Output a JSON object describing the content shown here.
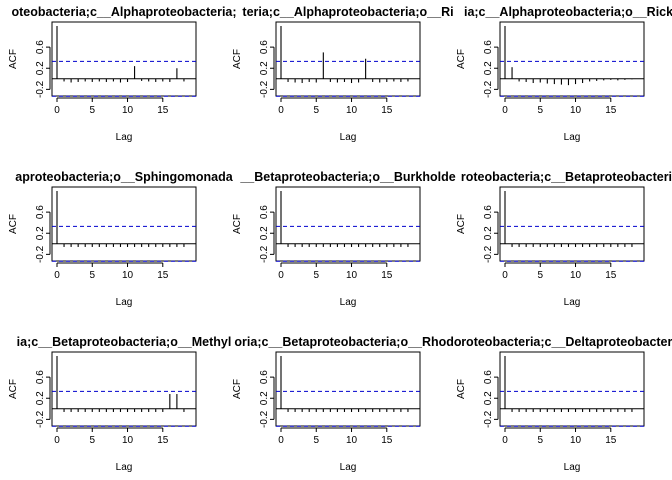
{
  "figure": {
    "background": "#ffffff",
    "ci_color": "#0000cd",
    "bar_color": "#000000",
    "zero_line_color": "#000000"
  },
  "chart_data": [
    {
      "type": "bar",
      "chart_kind": "acf",
      "title": "oteobacteria;c__Alphaproteobacteria;",
      "xlabel": "Lag",
      "ylabel": "ACF",
      "xlim": [
        0,
        19
      ],
      "ylim": [
        -0.25,
        1.0
      ],
      "xticks": [
        "0",
        "5",
        "10",
        "15"
      ],
      "yticks": [
        "-0.2",
        "0.2",
        "0.6"
      ],
      "ci": 0.33,
      "x": [
        0,
        1,
        2,
        3,
        4,
        5,
        6,
        7,
        8,
        9,
        10,
        11,
        12,
        13,
        14,
        15,
        16,
        17,
        18
      ],
      "values": [
        1.0,
        -0.05,
        -0.07,
        -0.06,
        -0.05,
        -0.06,
        -0.05,
        -0.06,
        -0.05,
        -0.07,
        -0.06,
        0.24,
        -0.04,
        -0.05,
        -0.06,
        -0.05,
        -0.06,
        0.2,
        -0.05
      ]
    },
    {
      "type": "bar",
      "chart_kind": "acf",
      "title": "teria;c__Alphaproteobacteria;o__Ri",
      "xlabel": "Lag",
      "ylabel": "ACF",
      "xlim": [
        0,
        19
      ],
      "ylim": [
        -0.25,
        1.0
      ],
      "xticks": [
        "0",
        "5",
        "10",
        "15"
      ],
      "yticks": [
        "-0.2",
        "0.2",
        "0.6"
      ],
      "ci": 0.33,
      "x": [
        0,
        1,
        2,
        3,
        4,
        5,
        6,
        7,
        8,
        9,
        10,
        11,
        12,
        13,
        14,
        15,
        16,
        17,
        18
      ],
      "values": [
        1.0,
        -0.06,
        -0.07,
        -0.08,
        -0.06,
        -0.07,
        0.5,
        -0.06,
        -0.07,
        -0.06,
        -0.08,
        -0.07,
        0.38,
        -0.06,
        -0.07,
        -0.06,
        -0.05,
        -0.06,
        -0.05
      ]
    },
    {
      "type": "bar",
      "chart_kind": "acf",
      "title": "ia;c__Alphaproteobacteria;o__Ricke",
      "xlabel": "Lag",
      "ylabel": "ACF",
      "xlim": [
        0,
        19
      ],
      "ylim": [
        -0.25,
        1.0
      ],
      "xticks": [
        "0",
        "5",
        "10",
        "15"
      ],
      "yticks": [
        "-0.2",
        "0.2",
        "0.6"
      ],
      "ci": 0.33,
      "x": [
        0,
        1,
        2,
        3,
        4,
        5,
        6,
        7,
        8,
        9,
        10,
        11,
        12,
        13,
        14,
        15,
        16,
        17,
        18
      ],
      "values": [
        1.0,
        0.22,
        -0.05,
        -0.06,
        -0.08,
        -0.07,
        -0.09,
        -0.1,
        -0.11,
        -0.12,
        -0.1,
        -0.08,
        -0.05,
        -0.04,
        -0.03,
        -0.02,
        -0.03,
        -0.02,
        -0.01
      ]
    },
    {
      "type": "bar",
      "chart_kind": "acf",
      "title": "aproteobacteria;o__Sphingomonada",
      "xlabel": "Lag",
      "ylabel": "ACF",
      "xlim": [
        0,
        19
      ],
      "ylim": [
        -0.25,
        1.0
      ],
      "xticks": [
        "0",
        "5",
        "10",
        "15"
      ],
      "yticks": [
        "-0.2",
        "0.2",
        "0.6"
      ],
      "ci": 0.33,
      "x": [
        0,
        1,
        2,
        3,
        4,
        5,
        6,
        7,
        8,
        9,
        10,
        11,
        12,
        13,
        14,
        15,
        16,
        17,
        18
      ],
      "values": [
        1.0,
        -0.06,
        -0.06,
        -0.06,
        -0.06,
        -0.06,
        -0.06,
        -0.06,
        -0.06,
        -0.06,
        -0.06,
        -0.06,
        -0.06,
        -0.06,
        -0.06,
        -0.06,
        -0.06,
        -0.06,
        -0.06
      ]
    },
    {
      "type": "bar",
      "chart_kind": "acf",
      "title": "__Betaproteobacteria;o__Burkholde",
      "xlabel": "Lag",
      "ylabel": "ACF",
      "xlim": [
        0,
        19
      ],
      "ylim": [
        -0.25,
        1.0
      ],
      "xticks": [
        "0",
        "5",
        "10",
        "15"
      ],
      "yticks": [
        "-0.2",
        "0.2",
        "0.6"
      ],
      "ci": 0.33,
      "x": [
        0,
        1,
        2,
        3,
        4,
        5,
        6,
        7,
        8,
        9,
        10,
        11,
        12,
        13,
        14,
        15,
        16,
        17,
        18
      ],
      "values": [
        1.0,
        -0.06,
        -0.06,
        -0.06,
        -0.06,
        -0.06,
        -0.06,
        -0.06,
        -0.06,
        -0.06,
        -0.06,
        -0.06,
        -0.06,
        -0.06,
        -0.06,
        -0.06,
        -0.06,
        -0.06,
        -0.06
      ]
    },
    {
      "type": "bar",
      "chart_kind": "acf",
      "title": "roteobacteria;c__Betaproteobacteria;",
      "xlabel": "Lag",
      "ylabel": "ACF",
      "xlim": [
        0,
        19
      ],
      "ylim": [
        -0.25,
        1.0
      ],
      "xticks": [
        "0",
        "5",
        "10",
        "15"
      ],
      "yticks": [
        "-0.2",
        "0.2",
        "0.6"
      ],
      "ci": 0.33,
      "x": [
        0,
        1,
        2,
        3,
        4,
        5,
        6,
        7,
        8,
        9,
        10,
        11,
        12,
        13,
        14,
        15,
        16,
        17,
        18
      ],
      "values": [
        1.0,
        -0.06,
        -0.06,
        -0.06,
        -0.06,
        -0.06,
        -0.06,
        -0.06,
        -0.06,
        -0.06,
        -0.06,
        -0.06,
        -0.06,
        -0.06,
        -0.06,
        -0.06,
        -0.06,
        -0.06,
        -0.06
      ]
    },
    {
      "type": "bar",
      "chart_kind": "acf",
      "title": "ia;c__Betaproteobacteria;o__Methyl",
      "xlabel": "Lag",
      "ylabel": "ACF",
      "xlim": [
        0,
        19
      ],
      "ylim": [
        -0.25,
        1.0
      ],
      "xticks": [
        "0",
        "5",
        "10",
        "15"
      ],
      "yticks": [
        "-0.2",
        "0.2",
        "0.6"
      ],
      "ci": 0.33,
      "x": [
        0,
        1,
        2,
        3,
        4,
        5,
        6,
        7,
        8,
        9,
        10,
        11,
        12,
        13,
        14,
        15,
        16,
        17,
        18
      ],
      "values": [
        1.0,
        -0.06,
        -0.06,
        -0.06,
        -0.06,
        -0.06,
        -0.06,
        -0.06,
        -0.06,
        -0.06,
        -0.06,
        -0.06,
        -0.06,
        -0.06,
        -0.06,
        -0.06,
        0.28,
        0.28,
        -0.06
      ]
    },
    {
      "type": "bar",
      "chart_kind": "acf",
      "title": "oria;c__Betaproteobacteria;o__Rhodo",
      "xlabel": "Lag",
      "ylabel": "ACF",
      "xlim": [
        0,
        19
      ],
      "ylim": [
        -0.25,
        1.0
      ],
      "xticks": [
        "0",
        "5",
        "10",
        "15"
      ],
      "yticks": [
        "-0.2",
        "0.2",
        "0.6"
      ],
      "ci": 0.33,
      "x": [
        0,
        1,
        2,
        3,
        4,
        5,
        6,
        7,
        8,
        9,
        10,
        11,
        12,
        13,
        14,
        15,
        16,
        17,
        18
      ],
      "values": [
        1.0,
        -0.06,
        -0.06,
        -0.06,
        -0.06,
        -0.06,
        -0.06,
        -0.06,
        -0.06,
        -0.06,
        -0.06,
        -0.06,
        -0.06,
        -0.06,
        -0.06,
        -0.06,
        -0.06,
        -0.06,
        -0.06
      ]
    },
    {
      "type": "bar",
      "chart_kind": "acf",
      "title": "roteobacteria;c__Deltaproteobacteria",
      "xlabel": "Lag",
      "ylabel": "ACF",
      "xlim": [
        0,
        19
      ],
      "ylim": [
        -0.25,
        1.0
      ],
      "xticks": [
        "0",
        "5",
        "10",
        "15"
      ],
      "yticks": [
        "-0.2",
        "0.2",
        "0.6"
      ],
      "ci": 0.33,
      "x": [
        0,
        1,
        2,
        3,
        4,
        5,
        6,
        7,
        8,
        9,
        10,
        11,
        12,
        13,
        14,
        15,
        16,
        17,
        18
      ],
      "values": [
        1.0,
        -0.06,
        -0.06,
        -0.06,
        -0.06,
        -0.06,
        -0.06,
        -0.06,
        -0.06,
        -0.06,
        -0.06,
        -0.06,
        -0.06,
        -0.06,
        -0.06,
        -0.06,
        -0.06,
        -0.06,
        -0.06
      ]
    }
  ]
}
